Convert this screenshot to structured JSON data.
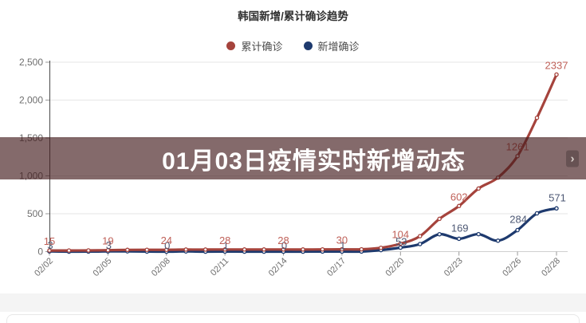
{
  "page": {
    "title": "韩国新增/累计确诊趋势",
    "overlay": {
      "headline": "01月03日疫情实时新增动态",
      "chevron": "›"
    }
  },
  "chart_data": {
    "type": "line",
    "title": "韩国新增/累计确诊趋势",
    "x": [
      "02/02",
      "02/03",
      "02/04",
      "02/05",
      "02/06",
      "02/07",
      "02/08",
      "02/09",
      "02/10",
      "02/11",
      "02/12",
      "02/13",
      "02/14",
      "02/15",
      "02/16",
      "02/17",
      "02/18",
      "02/19",
      "02/20",
      "02/21",
      "02/22",
      "02/23",
      "02/24",
      "02/25",
      "02/26",
      "02/27",
      "02/28"
    ],
    "x_tick_labels": [
      "02/02",
      "02/05",
      "02/08",
      "02/11",
      "02/14",
      "02/17",
      "02/20",
      "02/23",
      "02/26",
      "02/28"
    ],
    "labeled_indices": [
      0,
      3,
      6,
      9,
      12,
      15,
      18,
      21,
      24,
      26
    ],
    "ylim": [
      0,
      2500
    ],
    "y_ticks": [
      {
        "value": 0,
        "label": "0"
      },
      {
        "value": 500,
        "label": "500"
      },
      {
        "value": 1000,
        "label": "1,000"
      },
      {
        "value": 1500,
        "label": "1,500"
      },
      {
        "value": 2000,
        "label": "2,000"
      },
      {
        "value": 2500,
        "label": "2,500"
      }
    ],
    "grid": "horizontal",
    "legend_position": "top",
    "axis_color": "#4a4a4a",
    "grid_color": "#e6e6e6",
    "tick_color": "#999999",
    "tick_label_color": "#6e6e6e",
    "series": [
      {
        "name": "累计确诊",
        "color": "#a5433c",
        "label_color": "#bf6058",
        "values": [
          15,
          15,
          16,
          19,
          23,
          24,
          24,
          27,
          27,
          28,
          28,
          28,
          28,
          28,
          29,
          30,
          31,
          51,
          104,
          204,
          433,
          602,
          833,
          977,
          1261,
          1766,
          2337
        ]
      },
      {
        "name": "新增确诊",
        "color": "#1e3a6e",
        "label_color": "#4d5874",
        "values": [
          3,
          0,
          1,
          3,
          4,
          1,
          0,
          3,
          0,
          1,
          0,
          0,
          0,
          0,
          1,
          1,
          1,
          20,
          53,
          100,
          229,
          169,
          231,
          144,
          284,
          505,
          571
        ]
      }
    ]
  }
}
